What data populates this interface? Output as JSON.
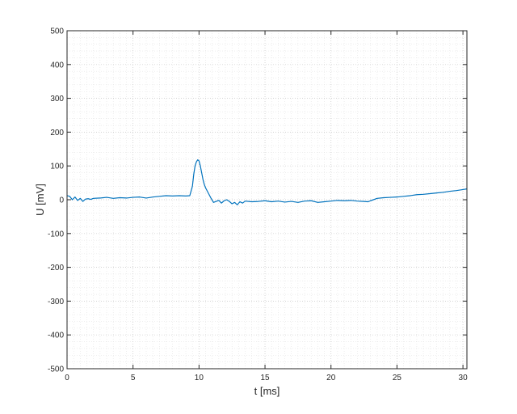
{
  "chart_data": {
    "type": "line",
    "title": "",
    "xlabel": "t [ms]",
    "ylabel": "U [mV]",
    "xlim": [
      0,
      30.3
    ],
    "ylim": [
      -500,
      500
    ],
    "x_ticks": [
      0,
      5,
      10,
      15,
      20,
      25,
      30
    ],
    "y_ticks": [
      -500,
      -400,
      -300,
      -200,
      -100,
      0,
      100,
      200,
      300,
      400,
      500
    ],
    "x_tick_labels": [
      "0",
      "5",
      "10",
      "15",
      "20",
      "25",
      "30"
    ],
    "y_tick_labels": [
      "-500",
      "-400",
      "-300",
      "-200",
      "-100",
      "0",
      "100",
      "200",
      "300",
      "400",
      "500"
    ],
    "grid": true,
    "minor_grid": true,
    "legend": "none",
    "series": [
      {
        "color": "#0072BD",
        "x": [
          0,
          0.2,
          0.4,
          0.6,
          0.8,
          1.0,
          1.2,
          1.4,
          1.6,
          1.8,
          2.0,
          2.5,
          3.0,
          3.5,
          4.0,
          4.5,
          5.0,
          5.5,
          6.0,
          6.5,
          7.0,
          7.5,
          8.0,
          8.5,
          9.0,
          9.3,
          9.5,
          9.6,
          9.7,
          9.8,
          9.9,
          10.0,
          10.1,
          10.2,
          10.3,
          10.4,
          10.5,
          10.7,
          10.9,
          11.1,
          11.3,
          11.5,
          11.7,
          11.9,
          12.1,
          12.3,
          12.5,
          12.7,
          12.9,
          13.1,
          13.3,
          13.5,
          14.0,
          14.5,
          15.0,
          15.5,
          16.0,
          16.5,
          17.0,
          17.5,
          18.0,
          18.5,
          19.0,
          19.5,
          20.0,
          20.5,
          21.0,
          21.5,
          22.0,
          22.5,
          22.8,
          23.0,
          23.5,
          24.0,
          24.5,
          25.0,
          25.5,
          26.0,
          26.5,
          27.0,
          27.5,
          28.0,
          28.5,
          29.0,
          29.5,
          30.0,
          30.3
        ],
        "y": [
          12,
          10,
          0,
          8,
          -2,
          4,
          -5,
          2,
          3,
          1,
          4,
          5,
          7,
          4,
          6,
          5,
          7,
          8,
          5,
          8,
          10,
          12,
          11,
          12,
          11,
          12,
          40,
          75,
          100,
          112,
          118,
          115,
          100,
          80,
          60,
          45,
          35,
          20,
          5,
          -8,
          -5,
          -2,
          -10,
          -3,
          0,
          -5,
          -12,
          -8,
          -15,
          -6,
          -10,
          -4,
          -6,
          -5,
          -3,
          -6,
          -4,
          -7,
          -5,
          -8,
          -4,
          -3,
          -8,
          -6,
          -4,
          -2,
          -3,
          -2,
          -4,
          -5,
          -6,
          -3,
          4,
          6,
          7,
          8,
          10,
          12,
          15,
          16,
          18,
          20,
          22,
          25,
          27,
          30,
          32
        ]
      }
    ]
  }
}
